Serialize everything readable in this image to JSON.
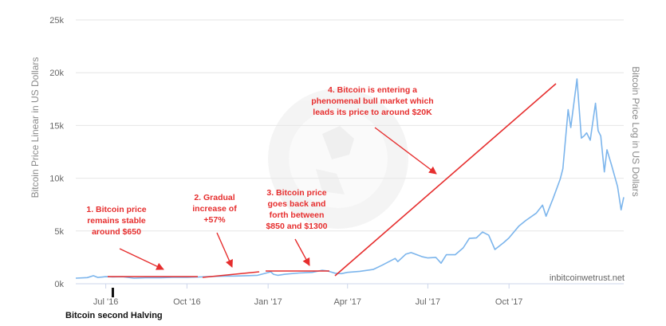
{
  "chart_data": {
    "type": "line",
    "y_left_label": "Bitcoin Price Linear in US Dollars",
    "y_right_label": "Bitcoin Price Log in US Dollars",
    "ylim": [
      0,
      25000
    ],
    "y_ticks": [
      {
        "value": 0,
        "label": "0k"
      },
      {
        "value": 5000,
        "label": "5k"
      },
      {
        "value": 10000,
        "label": "10k"
      },
      {
        "value": 15000,
        "label": "15k"
      },
      {
        "value": 20000,
        "label": "20k"
      },
      {
        "value": 25000,
        "label": "25k"
      }
    ],
    "x_ticks": [
      {
        "date": "2016-07-01",
        "label": "Jul '16"
      },
      {
        "date": "2016-10-01",
        "label": "Oct '16"
      },
      {
        "date": "2017-01-01",
        "label": "Jan '17"
      },
      {
        "date": "2017-04-01",
        "label": "Apr '17"
      },
      {
        "date": "2017-07-01",
        "label": "Jul '17"
      },
      {
        "date": "2017-10-01",
        "label": "Oct '17"
      }
    ],
    "xlim": [
      "2016-05-28",
      "2018-02-08"
    ],
    "grid": "horizontal",
    "line_color": "#7cb5ec",
    "series": [
      {
        "points": [
          [
            "2016-05-28",
            530
          ],
          [
            "2016-06-10",
            580
          ],
          [
            "2016-06-17",
            760
          ],
          [
            "2016-06-22",
            600
          ],
          [
            "2016-07-01",
            670
          ],
          [
            "2016-07-09",
            650
          ],
          [
            "2016-07-20",
            665
          ],
          [
            "2016-08-02",
            530
          ],
          [
            "2016-08-15",
            575
          ],
          [
            "2016-09-01",
            575
          ],
          [
            "2016-09-15",
            610
          ],
          [
            "2016-10-01",
            610
          ],
          [
            "2016-10-15",
            640
          ],
          [
            "2016-10-28",
            690
          ],
          [
            "2016-11-10",
            715
          ],
          [
            "2016-11-25",
            735
          ],
          [
            "2016-12-10",
            770
          ],
          [
            "2016-12-20",
            800
          ],
          [
            "2016-12-28",
            975
          ],
          [
            "2017-01-04",
            1130
          ],
          [
            "2017-01-07",
            900
          ],
          [
            "2017-01-12",
            800
          ],
          [
            "2017-01-20",
            900
          ],
          [
            "2017-02-05",
            1020
          ],
          [
            "2017-02-20",
            1080
          ],
          [
            "2017-03-03",
            1280
          ],
          [
            "2017-03-10",
            1200
          ],
          [
            "2017-03-18",
            1000
          ],
          [
            "2017-03-25",
            960
          ],
          [
            "2017-04-01",
            1080
          ],
          [
            "2017-04-15",
            1180
          ],
          [
            "2017-04-30",
            1350
          ],
          [
            "2017-05-10",
            1750
          ],
          [
            "2017-05-25",
            2400
          ],
          [
            "2017-05-28",
            2100
          ],
          [
            "2017-06-06",
            2800
          ],
          [
            "2017-06-12",
            2950
          ],
          [
            "2017-06-25",
            2550
          ],
          [
            "2017-07-01",
            2450
          ],
          [
            "2017-07-10",
            2500
          ],
          [
            "2017-07-16",
            1950
          ],
          [
            "2017-07-22",
            2750
          ],
          [
            "2017-08-01",
            2750
          ],
          [
            "2017-08-10",
            3400
          ],
          [
            "2017-08-17",
            4300
          ],
          [
            "2017-08-25",
            4350
          ],
          [
            "2017-09-01",
            4900
          ],
          [
            "2017-09-08",
            4600
          ],
          [
            "2017-09-15",
            3250
          ],
          [
            "2017-09-25",
            3900
          ],
          [
            "2017-10-01",
            4350
          ],
          [
            "2017-10-12",
            5450
          ],
          [
            "2017-10-20",
            6000
          ],
          [
            "2017-11-01",
            6700
          ],
          [
            "2017-11-08",
            7450
          ],
          [
            "2017-11-12",
            6400
          ],
          [
            "2017-11-20",
            8100
          ],
          [
            "2017-11-28",
            9900
          ],
          [
            "2017-12-01",
            10900
          ],
          [
            "2017-12-07",
            16500
          ],
          [
            "2017-12-10",
            14800
          ],
          [
            "2017-12-17",
            19400
          ],
          [
            "2017-12-22",
            13800
          ],
          [
            "2017-12-25",
            14000
          ],
          [
            "2017-12-28",
            14300
          ],
          [
            "2018-01-01",
            13600
          ],
          [
            "2018-01-07",
            17100
          ],
          [
            "2018-01-10",
            14500
          ],
          [
            "2018-01-13",
            14000
          ],
          [
            "2018-01-17",
            10600
          ],
          [
            "2018-01-20",
            12700
          ],
          [
            "2018-01-25",
            11300
          ],
          [
            "2018-02-01",
            9200
          ],
          [
            "2018-02-05",
            7000
          ],
          [
            "2018-02-08",
            8200
          ]
        ]
      }
    ],
    "annotations": [
      {
        "text": "1. Bitcoin price\nremains stable\naround $650"
      },
      {
        "text": "2. Gradual\nincrease of\n+57%"
      },
      {
        "text": "3. Bitcoin price\ngoes back and\nforth between\n$850 and $1300"
      },
      {
        "text": "4. Bitcoin is entering a\nphenomenal bull market which\nleads its price to around $20K"
      }
    ],
    "halving_marker": {
      "date": "2016-07-09",
      "label": "Bitcoin second Halving"
    },
    "annotation_color": "#e62e2e"
  },
  "watermark": "inbitcoinwetrust.net"
}
